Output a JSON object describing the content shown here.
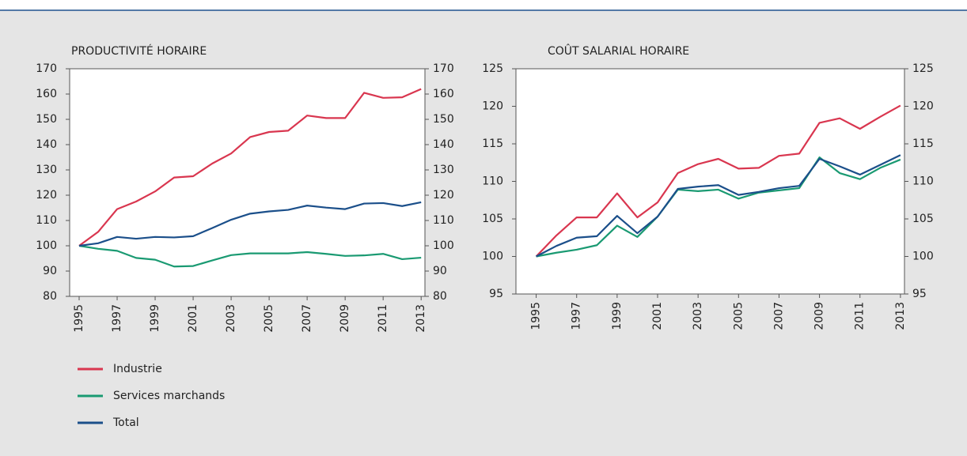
{
  "chart_data": [
    {
      "type": "line",
      "title": "PRODUCTIVITÉ HORAIRE",
      "x": [
        1995,
        1996,
        1997,
        1998,
        1999,
        2000,
        2001,
        2002,
        2003,
        2004,
        2005,
        2006,
        2007,
        2008,
        2009,
        2010,
        2011,
        2012,
        2013
      ],
      "xlim": [
        1994.5,
        2013.2
      ],
      "xticks": [
        1995,
        1997,
        1999,
        2001,
        2003,
        2005,
        2007,
        2009,
        2011,
        2013
      ],
      "ylim": [
        80,
        170
      ],
      "yticks": [
        80,
        90,
        100,
        110,
        120,
        130,
        140,
        150,
        160,
        170
      ],
      "series": [
        {
          "name": "Industrie",
          "color": "#d9364f",
          "values": [
            100,
            105.5,
            114.5,
            117.5,
            121.5,
            127,
            127.5,
            132.5,
            136.5,
            143,
            145,
            145.5,
            151.5,
            150.5,
            150.5,
            160.5,
            158.5,
            158.7,
            162
          ]
        },
        {
          "name": "Services marchands",
          "color": "#1a9a72",
          "values": [
            100,
            98.8,
            98,
            95.2,
            94.5,
            91.8,
            92,
            94.2,
            96.3,
            97,
            97,
            97,
            97.5,
            96.8,
            96,
            96.2,
            96.8,
            94.7,
            95.3
          ]
        },
        {
          "name": "Total",
          "color": "#1b4f8a",
          "values": [
            100,
            101,
            103.5,
            102.8,
            103.5,
            103.3,
            103.8,
            107,
            110.3,
            112.7,
            113.6,
            114.2,
            115.9,
            115.1,
            114.5,
            116.7,
            116.9,
            115.7,
            117.2
          ]
        }
      ]
    },
    {
      "type": "line",
      "title": "COÛT SALARIAL HORAIRE",
      "x": [
        1995,
        1996,
        1997,
        1998,
        1999,
        2000,
        2001,
        2002,
        2003,
        2004,
        2005,
        2006,
        2007,
        2008,
        2009,
        2010,
        2011,
        2012,
        2013
      ],
      "xlim": [
        1994,
        2013.2
      ],
      "xticks": [
        1995,
        1997,
        1999,
        2001,
        2003,
        2005,
        2007,
        2009,
        2011,
        2013
      ],
      "ylim": [
        95,
        125
      ],
      "yticks": [
        95,
        100,
        105,
        110,
        115,
        120,
        125
      ],
      "series": [
        {
          "color": "#d9364f",
          "values": [
            100,
            102.8,
            105.2,
            105.2,
            108.4,
            105.2,
            107.2,
            111.1,
            112.3,
            113,
            111.7,
            111.8,
            113.4,
            113.7,
            117.8,
            118.4,
            117,
            118.6,
            120.1
          ]
        },
        {
          "color": "#1a9a72",
          "values": [
            100,
            100.5,
            100.9,
            101.5,
            104.1,
            102.6,
            105.3,
            108.9,
            108.7,
            108.9,
            107.7,
            108.5,
            108.8,
            109.1,
            113.2,
            111.1,
            110.3,
            111.8,
            112.9
          ]
        },
        {
          "color": "#1b4f8a",
          "values": [
            100,
            101.4,
            102.5,
            102.7,
            105.4,
            103.1,
            105.3,
            109,
            109.3,
            109.5,
            108.2,
            108.6,
            109.1,
            109.4,
            113,
            112,
            110.9,
            112.2,
            113.5
          ]
        }
      ]
    }
  ]
}
